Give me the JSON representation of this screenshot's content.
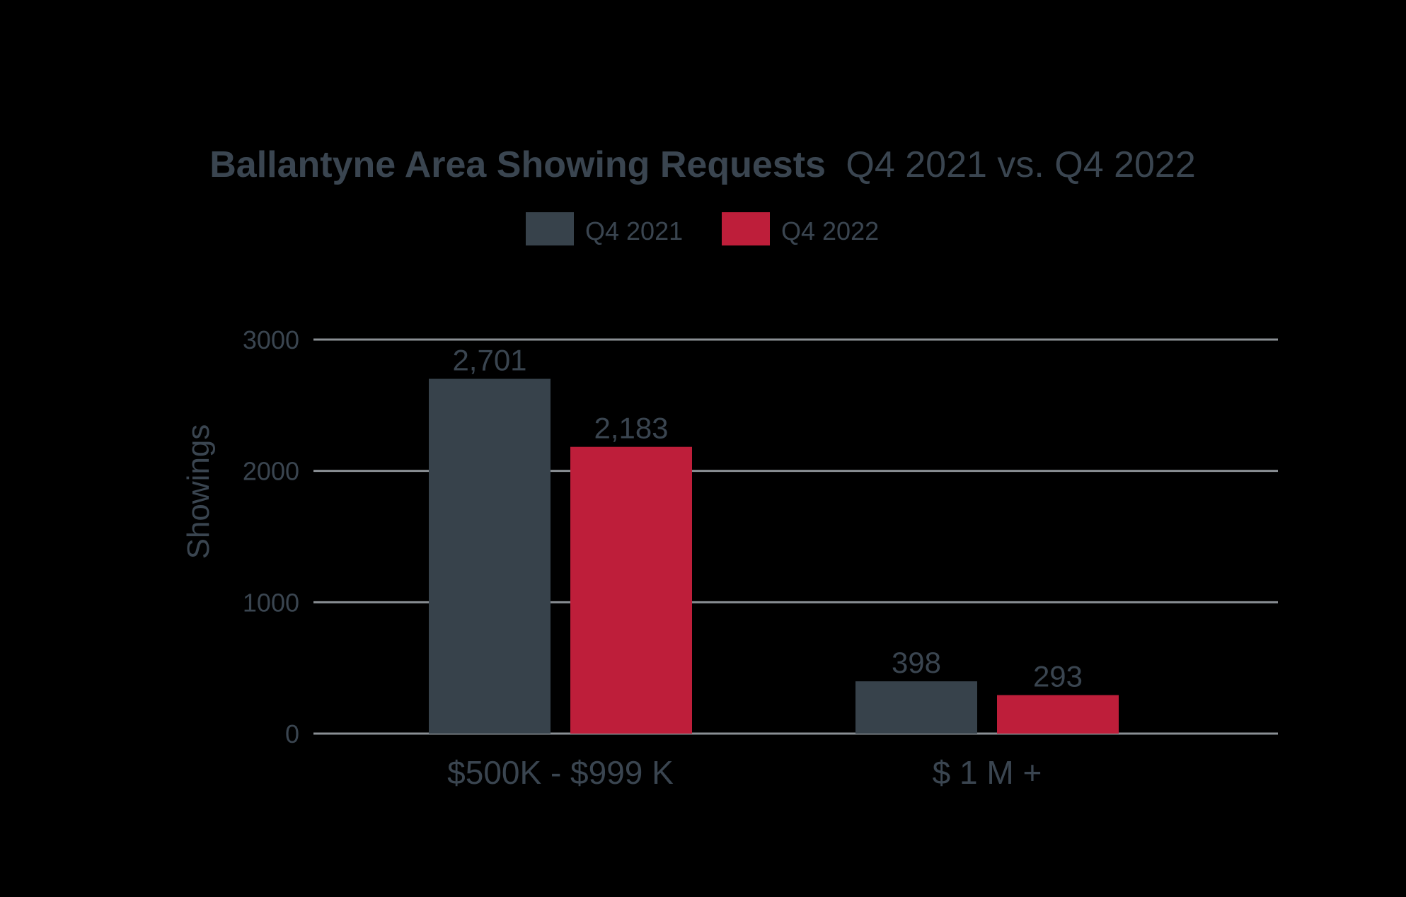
{
  "chart_data": {
    "type": "bar",
    "title_bold": "Ballantyne Area Showing Requests",
    "title_regular": "Q4 2021 vs. Q4 2022",
    "ylabel": "Showings",
    "xlabel": "",
    "ylim": [
      0,
      3000
    ],
    "yticks": [
      "0",
      "1000",
      "2000",
      "3000"
    ],
    "ytick_values": [
      0,
      1000,
      2000,
      3000
    ],
    "grid": true,
    "legend_position": "top-center",
    "categories": [
      "$500K - $999 K",
      "$ 1 M +"
    ],
    "series": [
      {
        "name": "Q4 2021",
        "color": "#37424b",
        "values": [
          2701,
          398
        ],
        "labels": [
          "2,701",
          "398"
        ]
      },
      {
        "name": "Q4 2022",
        "color": "#be1e3a",
        "values": [
          2183,
          293
        ],
        "labels": [
          "2,183",
          "293"
        ]
      }
    ]
  }
}
